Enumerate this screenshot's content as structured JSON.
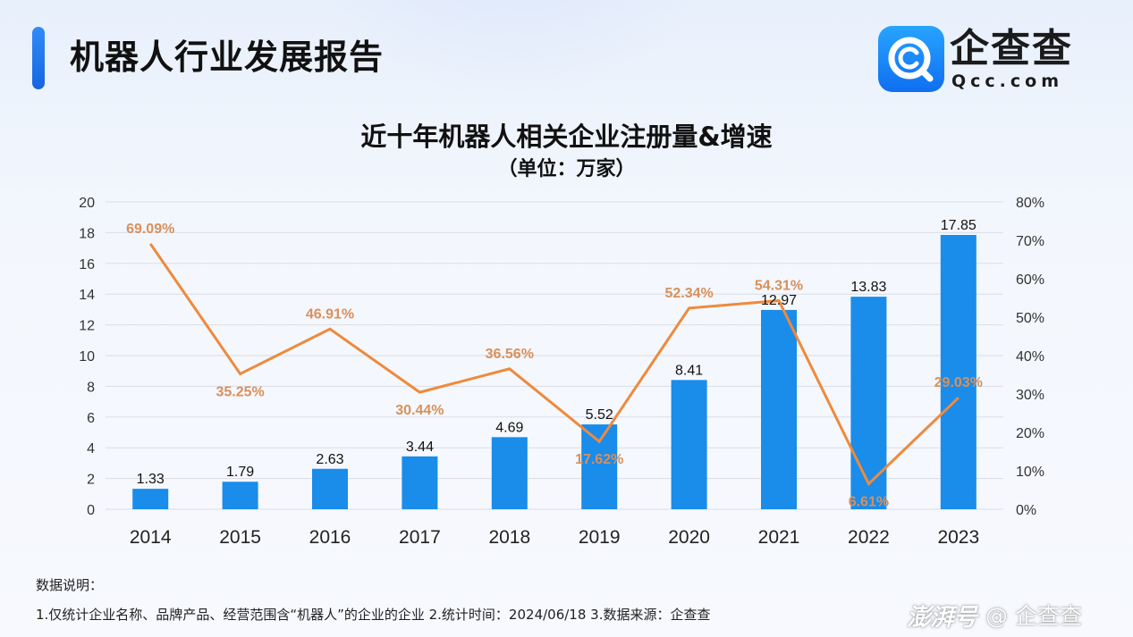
{
  "header": {
    "title": "机器人行业发展报告",
    "logo_name": "企查查",
    "logo_domain": "Qcc.com"
  },
  "chart_data": {
    "type": "bar+line",
    "title": "近十年机器人相关企业注册量&增速",
    "subtitle": "（单位：万家）",
    "categories": [
      "2014",
      "2015",
      "2016",
      "2017",
      "2018",
      "2019",
      "2020",
      "2021",
      "2022",
      "2023"
    ],
    "series": [
      {
        "type": "bar",
        "axis": "left",
        "values": [
          1.33,
          1.79,
          2.63,
          3.44,
          4.69,
          5.52,
          8.41,
          12.97,
          13.83,
          17.85
        ],
        "labels": [
          "1.33",
          "1.79",
          "2.63",
          "3.44",
          "4.69",
          "5.52",
          "8.41",
          "12.97",
          "13.83",
          "17.85"
        ],
        "color": "#1a8cea"
      },
      {
        "type": "line",
        "axis": "right",
        "values": [
          69.09,
          35.25,
          46.91,
          30.44,
          36.56,
          17.62,
          52.34,
          54.31,
          6.61,
          29.03
        ],
        "labels": [
          "69.09%",
          "35.25%",
          "46.91%",
          "30.44%",
          "36.56%",
          "17.62%",
          "52.34%",
          "54.31%",
          "6.61%",
          "29.03%"
        ],
        "label_position": [
          "above",
          "below",
          "above",
          "below",
          "above",
          "below",
          "above",
          "above",
          "below",
          "above"
        ],
        "color": "#ee8a3d",
        "label_color": "#d9905a"
      }
    ],
    "y_left": {
      "min": 0,
      "max": 20,
      "step": 2,
      "ticks": [
        "0",
        "2",
        "4",
        "6",
        "8",
        "10",
        "12",
        "14",
        "16",
        "18",
        "20"
      ]
    },
    "y_right": {
      "min": 0,
      "max": 80,
      "step": 10,
      "ticks": [
        "0%",
        "10%",
        "20%",
        "30%",
        "40%",
        "50%",
        "60%",
        "70%",
        "80%"
      ]
    },
    "grid": true,
    "legend": "none"
  },
  "notes": {
    "heading": "数据说明：",
    "text": "1.仅统计企业名称、品牌产品、经营范围含“机器人”的企业的企业   2.统计时间：2024/06/18   3.数据来源：企查查"
  },
  "watermark": {
    "brand": "澎湃号",
    "account": "@ 企查查"
  }
}
